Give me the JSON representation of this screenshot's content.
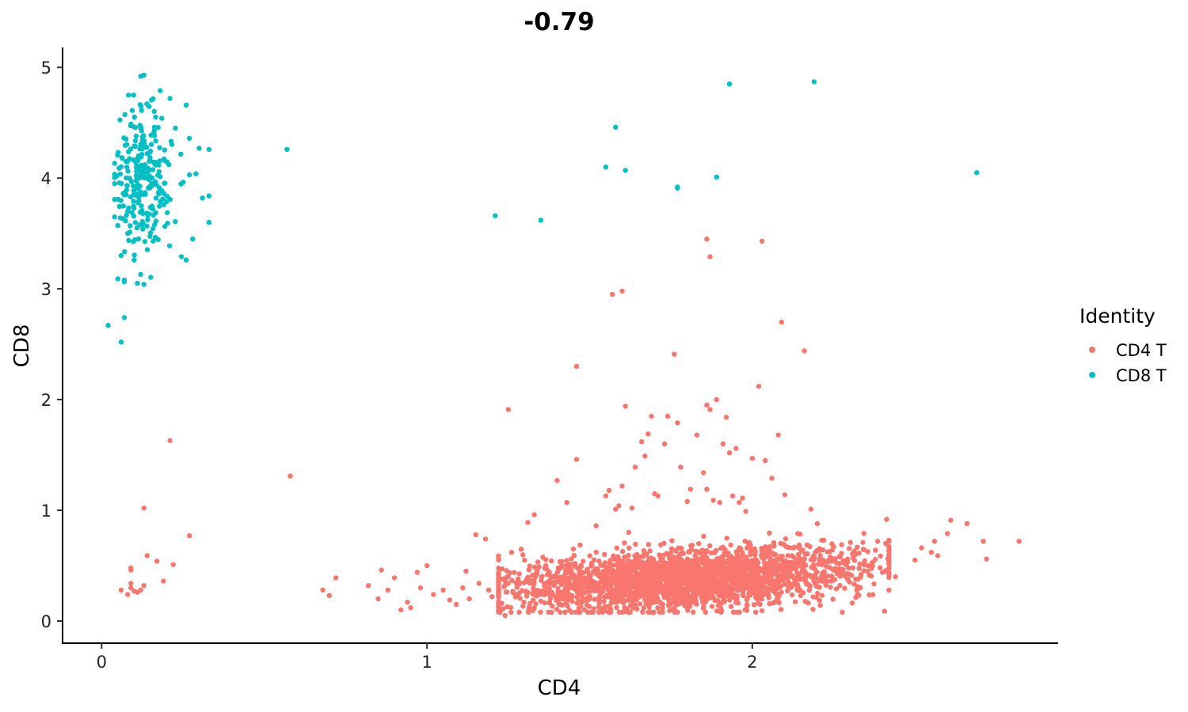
{
  "chart_data": {
    "type": "scatter",
    "title": "-0.79",
    "xlabel": "CD4",
    "ylabel": "CD8",
    "xlim": [
      -0.12,
      2.94
    ],
    "ylim": [
      -0.2,
      5.18
    ],
    "x_ticks": [
      0,
      1,
      2
    ],
    "x_tick_labels": [
      "0",
      "1",
      "2"
    ],
    "y_ticks": [
      0,
      1,
      2,
      3,
      4,
      5
    ],
    "y_tick_labels": [
      "0",
      "1",
      "2",
      "3",
      "4",
      "5"
    ],
    "grid": false,
    "legend_position": "right",
    "legend": {
      "title": "Identity",
      "entries": [
        "CD4 T",
        "CD8 T"
      ]
    },
    "series": [
      {
        "name": "CD4 T",
        "color": "#F8766D",
        "points": [
          [
            0.06,
            0.28
          ],
          [
            0.08,
            0.24
          ],
          [
            0.09,
            0.3
          ],
          [
            0.1,
            0.27
          ],
          [
            0.11,
            0.26
          ],
          [
            0.12,
            0.28
          ],
          [
            0.13,
            0.32
          ],
          [
            0.09,
            0.34
          ],
          [
            0.09,
            0.46
          ],
          [
            0.09,
            0.48
          ],
          [
            0.14,
            0.59
          ],
          [
            0.17,
            0.54
          ],
          [
            0.19,
            0.36
          ],
          [
            0.22,
            0.51
          ],
          [
            0.27,
            0.77
          ],
          [
            0.13,
            1.02
          ],
          [
            0.21,
            1.63
          ],
          [
            0.58,
            1.31
          ],
          [
            0.68,
            0.28
          ],
          [
            0.7,
            0.23
          ],
          [
            0.72,
            0.39
          ],
          [
            0.82,
            0.32
          ],
          [
            0.85,
            0.2
          ],
          [
            0.86,
            0.46
          ],
          [
            0.88,
            0.28
          ],
          [
            0.9,
            0.39
          ],
          [
            0.92,
            0.1
          ],
          [
            0.94,
            0.17
          ],
          [
            0.95,
            0.12
          ],
          [
            0.97,
            0.44
          ],
          [
            0.98,
            0.3
          ],
          [
            1.0,
            0.5
          ],
          [
            1.02,
            0.24
          ],
          [
            1.05,
            0.28
          ],
          [
            1.07,
            0.19
          ],
          [
            1.09,
            0.15
          ],
          [
            1.11,
            0.3
          ],
          [
            1.12,
            0.45
          ],
          [
            1.13,
            0.2
          ],
          [
            1.15,
            0.78
          ],
          [
            1.16,
            0.34
          ],
          [
            1.18,
            0.74
          ],
          [
            1.19,
            0.28
          ],
          [
            1.2,
            0.22
          ],
          [
            1.22,
            0.42
          ],
          [
            1.23,
            0.16
          ],
          [
            1.24,
            0.05
          ],
          [
            1.25,
            1.91
          ],
          [
            1.26,
            0.62
          ],
          [
            1.28,
            0.38
          ],
          [
            1.3,
            0.55
          ],
          [
            1.31,
            0.89
          ],
          [
            1.33,
            0.96
          ],
          [
            1.35,
            0.18
          ],
          [
            1.37,
            0.42
          ],
          [
            1.4,
            1.27
          ],
          [
            1.43,
            1.07
          ],
          [
            1.45,
            0.65
          ],
          [
            1.46,
            2.3
          ],
          [
            1.46,
            1.46
          ],
          [
            1.48,
            0.54
          ],
          [
            1.52,
            0.86
          ],
          [
            1.55,
            1.13
          ],
          [
            1.56,
            1.18
          ],
          [
            1.57,
            2.95
          ],
          [
            1.58,
            1.01
          ],
          [
            1.59,
            1.04
          ],
          [
            1.6,
            2.98
          ],
          [
            1.6,
            1.22
          ],
          [
            1.61,
            1.94
          ],
          [
            1.62,
            0.8
          ],
          [
            1.63,
            1.02
          ],
          [
            1.64,
            1.39
          ],
          [
            1.66,
            1.62
          ],
          [
            1.67,
            1.49
          ],
          [
            1.68,
            1.69
          ],
          [
            1.69,
            1.85
          ],
          [
            1.7,
            1.15
          ],
          [
            1.71,
            1.13
          ],
          [
            1.73,
            1.6
          ],
          [
            1.74,
            1.85
          ],
          [
            1.76,
            2.41
          ],
          [
            1.77,
            1.79
          ],
          [
            1.78,
            1.39
          ],
          [
            1.8,
            1.08
          ],
          [
            1.81,
            1.19
          ],
          [
            1.83,
            1.68
          ],
          [
            1.85,
            1.34
          ],
          [
            1.86,
            3.45
          ],
          [
            1.86,
            1.19
          ],
          [
            1.86,
            1.95
          ],
          [
            1.87,
            1.91
          ],
          [
            1.87,
            3.29
          ],
          [
            1.88,
            1.09
          ],
          [
            1.89,
            2.0
          ],
          [
            1.9,
            1.07
          ],
          [
            1.91,
            1.6
          ],
          [
            1.92,
            1.84
          ],
          [
            1.93,
            1.52
          ],
          [
            1.94,
            1.13
          ],
          [
            1.95,
            1.56
          ],
          [
            1.96,
            1.07
          ],
          [
            1.97,
            1.11
          ],
          [
            1.98,
            0.99
          ],
          [
            2.0,
            1.47
          ],
          [
            2.02,
            2.12
          ],
          [
            2.03,
            3.43
          ],
          [
            2.04,
            1.45
          ],
          [
            2.06,
            1.29
          ],
          [
            2.08,
            1.68
          ],
          [
            2.09,
            2.7
          ],
          [
            2.1,
            1.14
          ],
          [
            2.14,
            0.79
          ],
          [
            2.16,
            2.44
          ],
          [
            2.18,
            1.01
          ],
          [
            2.2,
            0.88
          ],
          [
            2.22,
            0.73
          ],
          [
            2.25,
            0.67
          ],
          [
            2.27,
            0.58
          ],
          [
            2.29,
            0.54
          ],
          [
            2.31,
            0.57
          ],
          [
            2.34,
            0.71
          ],
          [
            2.37,
            0.53
          ],
          [
            2.4,
            0.44
          ],
          [
            2.41,
            0.7
          ],
          [
            2.44,
            0.4
          ],
          [
            2.5,
            0.55
          ],
          [
            2.52,
            0.66
          ],
          [
            2.55,
            0.62
          ],
          [
            2.56,
            0.72
          ],
          [
            2.57,
            0.59
          ],
          [
            2.6,
            0.79
          ],
          [
            2.61,
            0.91
          ],
          [
            2.66,
            0.88
          ],
          [
            2.71,
            0.72
          ],
          [
            2.72,
            0.56
          ],
          [
            2.82,
            0.72
          ]
        ],
        "dense_cluster": {
          "count": 2600,
          "x_range": [
            1.22,
            2.42
          ],
          "center": [
            1.8,
            0.4
          ],
          "spread": [
            0.26,
            0.13
          ]
        }
      },
      {
        "name": "CD8 T",
        "color": "#00BFC4",
        "points": [
          [
            0.02,
            2.67
          ],
          [
            0.06,
            2.52
          ],
          [
            0.07,
            2.74
          ],
          [
            0.05,
            3.09
          ],
          [
            0.06,
            3.3
          ],
          [
            0.07,
            3.08
          ],
          [
            0.08,
            3.5
          ],
          [
            0.08,
            3.7
          ],
          [
            0.11,
            3.05
          ],
          [
            0.13,
            3.04
          ],
          [
            0.1,
            3.26
          ],
          [
            0.12,
            3.13
          ],
          [
            0.13,
            4.93
          ],
          [
            0.12,
            4.92
          ],
          [
            0.18,
            4.79
          ],
          [
            0.21,
            4.72
          ],
          [
            0.26,
            4.66
          ],
          [
            0.27,
            4.36
          ],
          [
            0.3,
            4.27
          ],
          [
            0.33,
            4.26
          ],
          [
            0.33,
            3.84
          ],
          [
            0.33,
            3.6
          ],
          [
            0.28,
            3.45
          ],
          [
            0.26,
            3.26
          ],
          [
            0.27,
            4.03
          ],
          [
            0.29,
            4.04
          ],
          [
            0.31,
            3.82
          ],
          [
            0.57,
            4.26
          ],
          [
            1.21,
            3.66
          ],
          [
            1.35,
            3.62
          ],
          [
            1.55,
            4.1
          ],
          [
            1.58,
            4.46
          ],
          [
            1.61,
            4.07
          ],
          [
            1.77,
            3.92
          ],
          [
            1.77,
            3.91
          ],
          [
            1.89,
            4.01
          ],
          [
            1.93,
            4.85
          ],
          [
            2.19,
            4.87
          ],
          [
            2.69,
            4.05
          ]
        ],
        "dense_cluster": {
          "count": 260,
          "x_range": [
            0.04,
            0.3
          ],
          "center": [
            0.13,
            4.0
          ],
          "spread": [
            0.045,
            0.33
          ]
        }
      }
    ]
  }
}
